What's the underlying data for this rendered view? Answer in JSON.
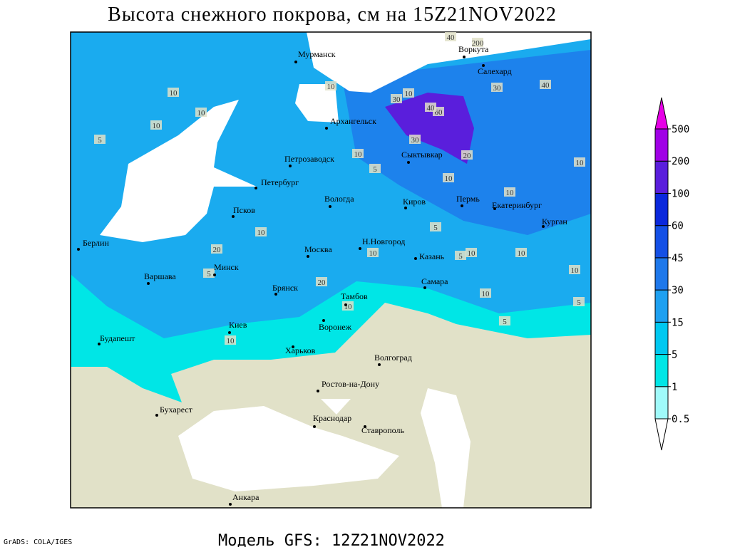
{
  "title": "Высота снежного покрова, см на 15Z21NOV2022",
  "footer": {
    "model": "Модель GFS: 12Z21NOV2022",
    "credit": "GrADS: COLA/IGES"
  },
  "cities": [
    "Мурманск",
    "Воркута",
    "Салехард",
    "Архангельск",
    "Сыктывкар",
    "Петрозаводск",
    "Петербург",
    "Вологда",
    "Киров",
    "Пермь",
    "Екатеринбург",
    "Курган",
    "Псков",
    "Берлин",
    "Н.Новгород",
    "Москва",
    "Казань",
    "Варшава",
    "Минск",
    "Брянск",
    "Самара",
    "Тамбов",
    "Киев",
    "Воронеж",
    "Будапешт",
    "Харьков",
    "Волгоград",
    "Ростов-на-Дону",
    "Бухарест",
    "Краснодар",
    "Ставрополь",
    "Анкара"
  ],
  "contour_labels": [
    40,
    200,
    10,
    10,
    10,
    10,
    30,
    40,
    60,
    40,
    30,
    10,
    30,
    5,
    10,
    5,
    10,
    20,
    10,
    10,
    10,
    5,
    10,
    10,
    5,
    20,
    10,
    10,
    5,
    10,
    5,
    5,
    10,
    20,
    10
  ],
  "legend": {
    "levels": [
      0.5,
      1,
      5,
      15,
      30,
      45,
      60,
      100,
      200,
      500
    ],
    "colors": [
      "#ffffff",
      "#a0fafa",
      "#00e6e6",
      "#00c8f0",
      "#1ea0f0",
      "#1e78eb",
      "#1450e6",
      "#0a28dc",
      "#5a1edc",
      "#a000e6",
      "#e600e6"
    ]
  }
}
